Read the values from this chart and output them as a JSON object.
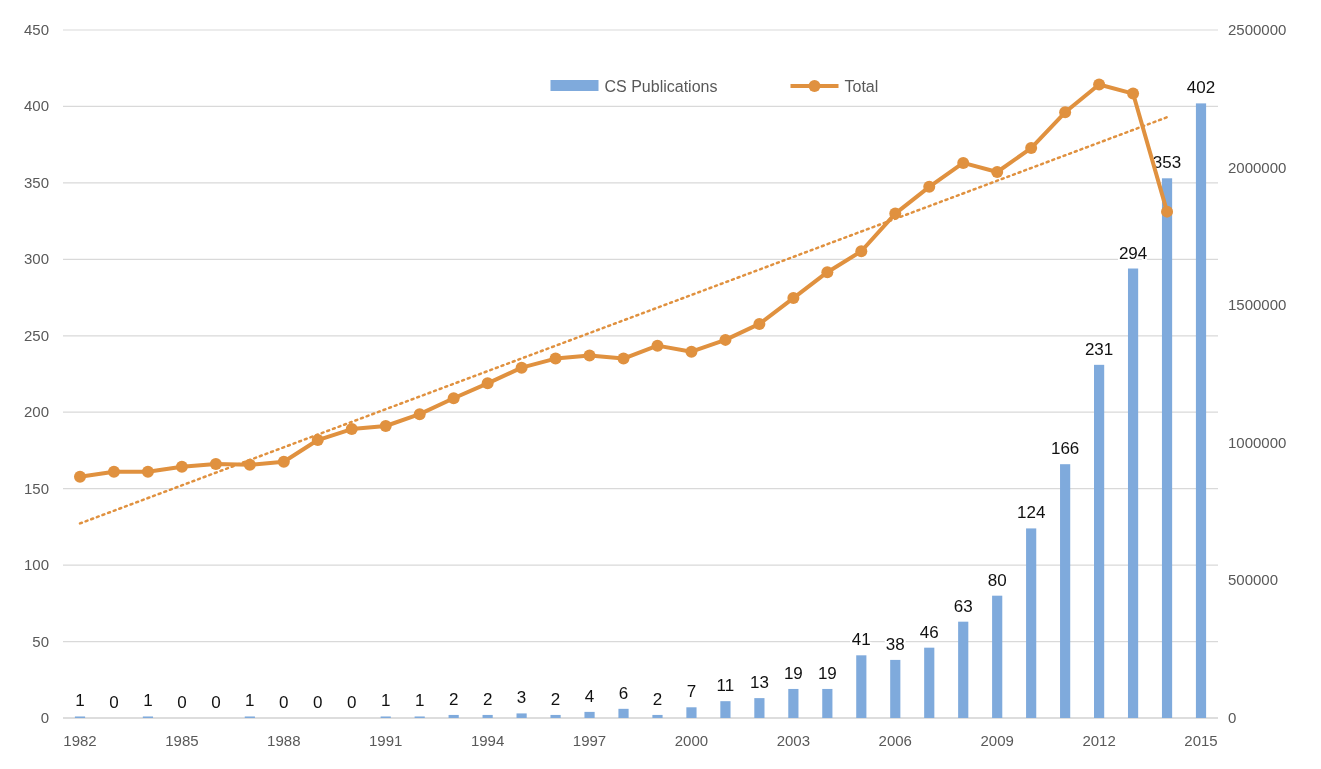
{
  "chart_data": {
    "type": "bar",
    "x": [
      1982,
      1983,
      1984,
      1985,
      1986,
      1987,
      1988,
      1989,
      1990,
      1991,
      1992,
      1993,
      1994,
      1995,
      1996,
      1997,
      1998,
      1999,
      2000,
      2001,
      2002,
      2003,
      2004,
      2005,
      2006,
      2007,
      2008,
      2009,
      2010,
      2011,
      2012,
      2013,
      2014,
      2015
    ],
    "xlim": [
      1981.5,
      2015.5
    ],
    "xticks": [
      1982,
      1985,
      1988,
      1991,
      1994,
      1997,
      2000,
      2003,
      2006,
      2009,
      2012,
      2015
    ],
    "ylim": [
      0,
      450
    ],
    "yticks": [
      0,
      50,
      100,
      150,
      200,
      250,
      300,
      350,
      400,
      450
    ],
    "y2lim": [
      0,
      2500000
    ],
    "y2ticks": [
      0,
      500000,
      1000000,
      1500000,
      2000000,
      2500000
    ],
    "grid": "y",
    "legend": "top",
    "series": [
      {
        "name": "CS Publications",
        "color": "#7faadc",
        "values": [
          1,
          0,
          1,
          0,
          0,
          1,
          0,
          0,
          0,
          1,
          1,
          2,
          2,
          3,
          2,
          4,
          6,
          2,
          7,
          11,
          13,
          19,
          19,
          41,
          38,
          46,
          63,
          80,
          124,
          166,
          231,
          294,
          353,
          402
        ],
        "value_labels": [
          "1",
          "0",
          "1",
          "0",
          "0",
          "1",
          "0",
          "0",
          "0",
          "1",
          "1",
          "2",
          "2",
          "3",
          "2",
          "4",
          "6",
          "2",
          "7",
          "11",
          "13",
          "19",
          "19",
          "41",
          "38",
          "46",
          "63",
          "80",
          "124",
          "166",
          "231",
          "294",
          "353",
          "402"
        ]
      },
      {
        "type": "line",
        "name": "Total",
        "axis": "y2",
        "color": "#e0913f",
        "marker": "circle",
        "line_style": "solid",
        "x": [
          1982,
          1983,
          1984,
          1985,
          1986,
          1987,
          1988,
          1989,
          1990,
          1991,
          1992,
          1993,
          1994,
          1995,
          1996,
          1997,
          1998,
          1999,
          2000,
          2001,
          2002,
          2003,
          2004,
          2005,
          2006,
          2007,
          2008,
          2009,
          2010,
          2011,
          2012,
          2013,
          2014
        ],
        "values": [
          877000,
          895000,
          895000,
          913000,
          923000,
          920000,
          931000,
          1010000,
          1050000,
          1061000,
          1104000,
          1162000,
          1216000,
          1273000,
          1306000,
          1317000,
          1306000,
          1353000,
          1331000,
          1374000,
          1432000,
          1526000,
          1620000,
          1696000,
          1833000,
          1930000,
          2017000,
          1984000,
          2071000,
          2201000,
          2302000,
          2269000,
          1840000
        ]
      },
      {
        "type": "line",
        "axis": "y2",
        "color": "#e0913f",
        "marker": "none",
        "line_style": "dotted",
        "x": [
          1982,
          2014
        ],
        "values": [
          707000,
          2183000
        ]
      }
    ]
  }
}
